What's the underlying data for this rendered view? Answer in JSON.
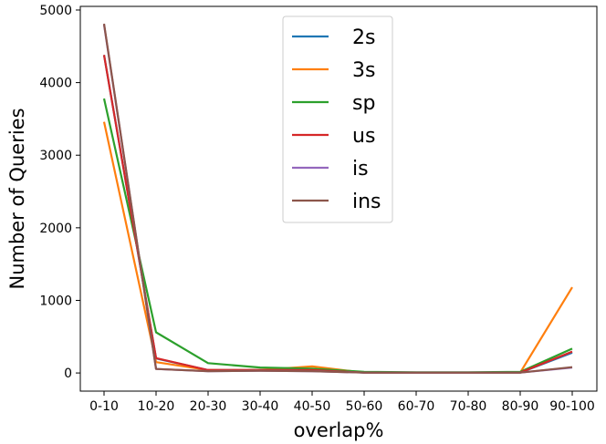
{
  "chart_data": {
    "type": "line",
    "title": "",
    "xlabel": "overlap%",
    "ylabel": "Number of Queries",
    "categories": [
      "0-10",
      "10-20",
      "20-30",
      "30-40",
      "40-50",
      "50-60",
      "60-70",
      "70-80",
      "80-90",
      "90-100"
    ],
    "ylim": [
      -250,
      5050
    ],
    "yticks": [
      0,
      1000,
      2000,
      3000,
      4000,
      5000
    ],
    "grid": false,
    "legend_position": "top-center",
    "series": [
      {
        "name": "2s",
        "color": "#1f77b4",
        "values": [
          4380,
          200,
          40,
          40,
          40,
          5,
          5,
          5,
          5,
          280
        ]
      },
      {
        "name": "3s",
        "color": "#ff7f0e",
        "values": [
          3460,
          150,
          40,
          40,
          90,
          5,
          5,
          5,
          5,
          1180
        ]
      },
      {
        "name": "sp",
        "color": "#2ca02c",
        "values": [
          3780,
          560,
          135,
          75,
          60,
          15,
          10,
          10,
          15,
          335
        ]
      },
      {
        "name": "us",
        "color": "#d62728",
        "values": [
          4380,
          205,
          40,
          40,
          40,
          5,
          5,
          5,
          5,
          295
        ]
      },
      {
        "name": "is",
        "color": "#9467bd",
        "values": [
          4800,
          55,
          25,
          30,
          25,
          5,
          5,
          5,
          5,
          75
        ]
      },
      {
        "name": "ins",
        "color": "#8c564b",
        "values": [
          4810,
          55,
          25,
          30,
          25,
          5,
          5,
          5,
          5,
          80
        ]
      }
    ]
  }
}
